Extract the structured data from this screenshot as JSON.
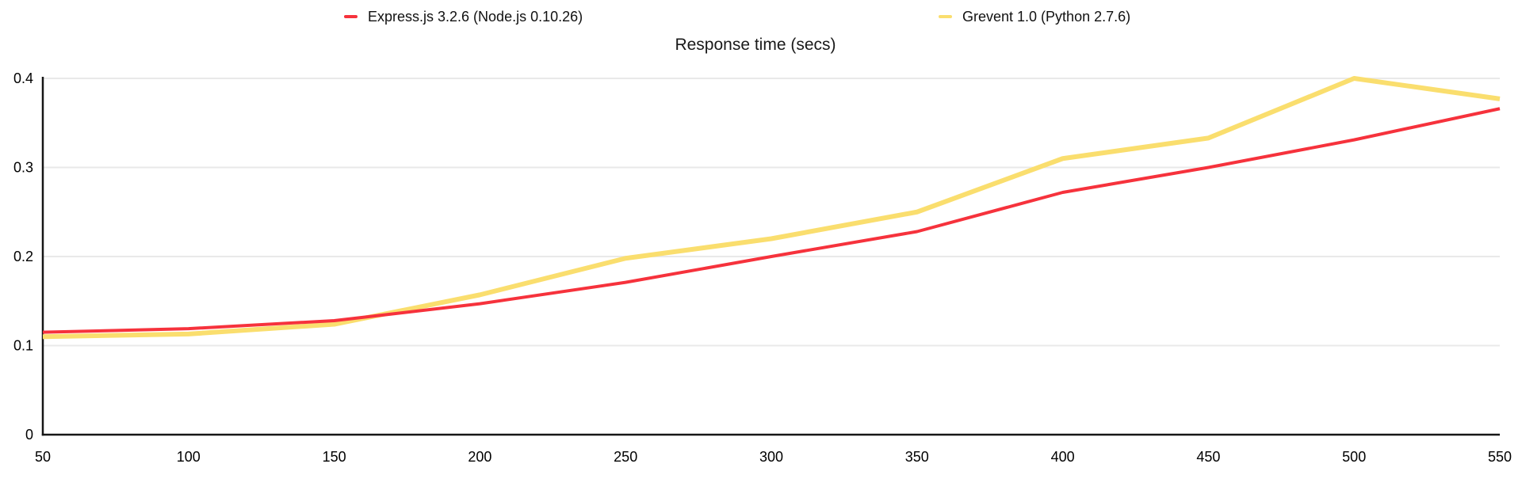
{
  "title": "Response time (secs)",
  "colors": {
    "background": "#ffffff",
    "grid": "#e9e9e9",
    "axis": "#161616",
    "text": "#111111",
    "express_red": "#f6323c",
    "grevent_yellow": "#fade6e"
  },
  "chart_data": {
    "type": "line",
    "title": "Response time (secs)",
    "xlabel": "",
    "ylabel": "",
    "x": [
      50,
      100,
      150,
      200,
      250,
      300,
      350,
      400,
      450,
      500,
      550
    ],
    "series": [
      {
        "name": "Express.js 3.2.6 (Node.js 0.10.26)",
        "color": "#f6323c",
        "stroke_width": 4,
        "values": [
          0.115,
          0.119,
          0.128,
          0.147,
          0.171,
          0.2,
          0.228,
          0.272,
          0.3,
          0.331,
          0.366
        ]
      },
      {
        "name": "Grevent 1.0 (Python 2.7.6)",
        "color": "#fade6e",
        "stroke_width": 6,
        "values": [
          0.11,
          0.113,
          0.124,
          0.157,
          0.198,
          0.22,
          0.25,
          0.31,
          0.333,
          0.4,
          0.377
        ]
      }
    ],
    "xlim": [
      50,
      550
    ],
    "ylim": [
      0,
      0.4
    ],
    "xtick_labels": [
      "50",
      "100",
      "150",
      "200",
      "250",
      "300",
      "350",
      "400",
      "450",
      "500",
      "550"
    ],
    "yticks": [
      0,
      0.1,
      0.2,
      0.3,
      0.4
    ],
    "ytick_labels": [
      "0",
      "0.1",
      "0.2",
      "0.3",
      "0.4"
    ],
    "grid": "horizontal",
    "legend_position": "top"
  }
}
